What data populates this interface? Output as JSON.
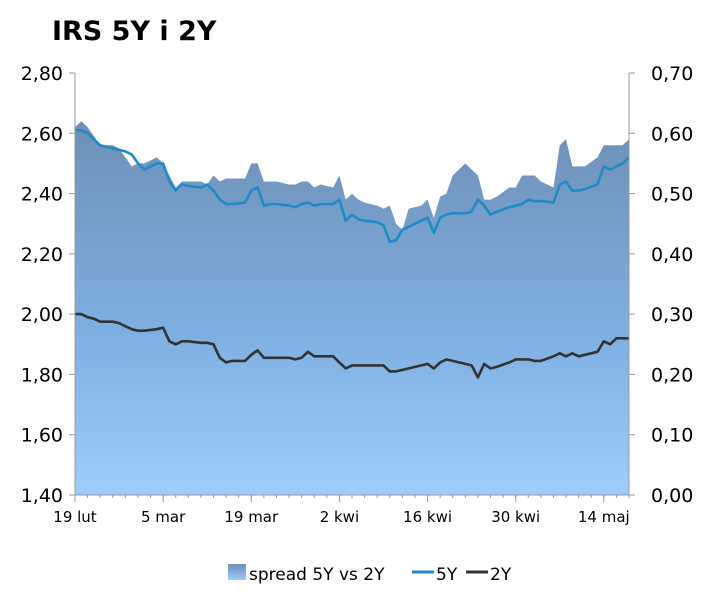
{
  "chart_data": {
    "type": "area",
    "title": "IRS 5Y i 2Y",
    "left_axis": {
      "range": [
        1.4,
        2.8
      ],
      "ticks": [
        "1,40",
        "1,60",
        "1,80",
        "2,00",
        "2,20",
        "2,40",
        "2,60",
        "2,80"
      ]
    },
    "right_axis": {
      "range": [
        0.0,
        0.7
      ],
      "ticks": [
        "0,00",
        "0,10",
        "0,20",
        "0,30",
        "0,40",
        "0,50",
        "0,60",
        "0,70"
      ]
    },
    "x_ticks": [
      {
        "label": "19 lut",
        "day": 0
      },
      {
        "label": "5 mar",
        "day": 14
      },
      {
        "label": "19 mar",
        "day": 28
      },
      {
        "label": "2 kwi",
        "day": 42
      },
      {
        "label": "16 kwi",
        "day": 56
      },
      {
        "label": "30 kwi",
        "day": 70
      },
      {
        "label": "14 maj",
        "day": 84
      }
    ],
    "x": [
      0,
      1,
      2,
      3,
      4,
      6,
      7,
      8,
      9,
      10,
      11,
      13,
      14,
      15,
      16,
      17,
      18,
      20,
      21,
      22,
      23,
      24,
      25,
      27,
      28,
      29,
      30,
      31,
      32,
      34,
      35,
      36,
      37,
      38,
      39,
      41,
      42,
      43,
      44,
      45,
      46,
      48,
      49,
      50,
      51,
      52,
      53,
      55,
      56,
      57,
      58,
      59,
      60,
      62,
      63,
      64,
      65,
      66,
      67,
      69,
      70,
      71,
      72,
      73,
      74,
      76,
      77,
      78,
      79,
      80,
      81,
      83,
      84,
      85,
      86,
      87,
      88
    ],
    "series": [
      {
        "name": "spread 5Y vs 2Y",
        "axis": "right",
        "color": "#8fb3d9",
        "values": [
          0.61,
          0.62,
          0.61,
          0.595,
          0.58,
          0.58,
          0.575,
          0.56,
          0.545,
          0.55,
          0.55,
          0.56,
          0.55,
          0.53,
          0.51,
          0.52,
          0.52,
          0.52,
          0.515,
          0.53,
          0.52,
          0.525,
          0.525,
          0.525,
          0.55,
          0.55,
          0.52,
          0.52,
          0.52,
          0.515,
          0.515,
          0.52,
          0.52,
          0.51,
          0.515,
          0.51,
          0.53,
          0.49,
          0.5,
          0.49,
          0.485,
          0.48,
          0.475,
          0.48,
          0.45,
          0.44,
          0.475,
          0.48,
          0.49,
          0.46,
          0.495,
          0.5,
          0.53,
          0.55,
          0.54,
          0.53,
          0.49,
          0.49,
          0.495,
          0.51,
          0.51,
          0.53,
          0.53,
          0.53,
          0.52,
          0.51,
          0.58,
          0.59,
          0.545,
          0.545,
          0.545,
          0.56,
          0.58,
          0.58,
          0.58,
          0.58,
          0.59
        ]
      },
      {
        "name": "5Y",
        "axis": "left",
        "color": "#1f8bc7",
        "values": [
          2.61,
          2.61,
          2.6,
          2.58,
          2.56,
          2.55,
          2.545,
          2.54,
          2.53,
          2.5,
          2.48,
          2.5,
          2.5,
          2.44,
          2.41,
          2.43,
          2.425,
          2.42,
          2.43,
          2.41,
          2.38,
          2.365,
          2.365,
          2.37,
          2.41,
          2.42,
          2.36,
          2.365,
          2.365,
          2.36,
          2.355,
          2.365,
          2.37,
          2.36,
          2.365,
          2.365,
          2.38,
          2.31,
          2.33,
          2.315,
          2.31,
          2.305,
          2.295,
          2.24,
          2.245,
          2.28,
          2.29,
          2.31,
          2.32,
          2.27,
          2.32,
          2.33,
          2.335,
          2.335,
          2.34,
          2.38,
          2.36,
          2.33,
          2.34,
          2.355,
          2.36,
          2.365,
          2.38,
          2.375,
          2.375,
          2.37,
          2.43,
          2.44,
          2.41,
          2.41,
          2.415,
          2.43,
          2.49,
          2.48,
          2.49,
          2.5,
          2.52
        ]
      },
      {
        "name": "2Y",
        "axis": "left",
        "color": "#333333",
        "values": [
          2.0,
          2.0,
          1.99,
          1.985,
          1.975,
          1.975,
          1.97,
          1.96,
          1.95,
          1.945,
          1.945,
          1.95,
          1.955,
          1.91,
          1.9,
          1.91,
          1.91,
          1.905,
          1.905,
          1.9,
          1.855,
          1.84,
          1.845,
          1.845,
          1.865,
          1.88,
          1.855,
          1.855,
          1.855,
          1.855,
          1.85,
          1.855,
          1.875,
          1.86,
          1.86,
          1.86,
          1.84,
          1.82,
          1.83,
          1.83,
          1.83,
          1.83,
          1.83,
          1.81,
          1.81,
          1.815,
          1.82,
          1.83,
          1.835,
          1.82,
          1.84,
          1.85,
          1.845,
          1.835,
          1.83,
          1.79,
          1.835,
          1.82,
          1.825,
          1.84,
          1.85,
          1.85,
          1.85,
          1.845,
          1.845,
          1.86,
          1.87,
          1.86,
          1.87,
          1.86,
          1.865,
          1.875,
          1.91,
          1.9,
          1.92,
          1.92,
          1.92
        ]
      }
    ],
    "legend": {
      "placement": "bottom",
      "items": [
        "spread 5Y vs 2Y",
        "5Y",
        "2Y"
      ]
    }
  }
}
